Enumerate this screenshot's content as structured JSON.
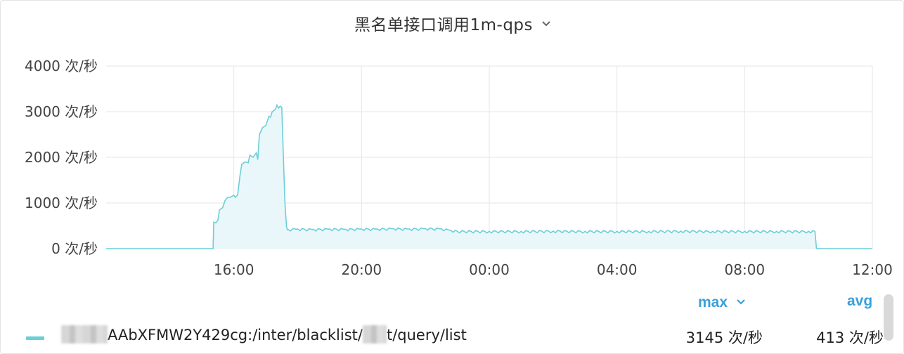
{
  "panel": {
    "title": "黑名单接口调用1m-qps",
    "title_caret": "chevron-down-icon"
  },
  "chart_data": {
    "type": "area",
    "title": "黑名单接口调用1m-qps",
    "xlabel": "",
    "ylabel": "",
    "y_unit": "次/秒",
    "y_ticks": [
      "0 次/秒",
      "1000 次/秒",
      "2000 次/秒",
      "3000 次/秒",
      "4000 次/秒"
    ],
    "ylim": [
      0,
      4000
    ],
    "x_ticks": [
      "16:00",
      "20:00",
      "00:00",
      "04:00",
      "08:00",
      "12:00"
    ],
    "xlim_hours": [
      12.0,
      36.0
    ],
    "grid": true,
    "line_color": "#6ccfd8",
    "fill_color": "#eaf7fa",
    "series": [
      {
        "name": "AAbXFMW2Y429cg:/inter/blacklist/t/query/list",
        "points": [
          [
            12.0,
            0
          ],
          [
            15.35,
            0
          ],
          [
            15.37,
            580
          ],
          [
            15.5,
            620
          ],
          [
            15.55,
            850
          ],
          [
            15.65,
            900
          ],
          [
            15.72,
            1050
          ],
          [
            15.8,
            1120
          ],
          [
            15.9,
            1130
          ],
          [
            16.0,
            1170
          ],
          [
            16.05,
            1120
          ],
          [
            16.12,
            1180
          ],
          [
            16.2,
            1650
          ],
          [
            16.25,
            1850
          ],
          [
            16.35,
            1900
          ],
          [
            16.45,
            1880
          ],
          [
            16.5,
            2050
          ],
          [
            16.6,
            2000
          ],
          [
            16.7,
            2100
          ],
          [
            16.75,
            1950
          ],
          [
            16.8,
            2500
          ],
          [
            16.9,
            2650
          ],
          [
            17.0,
            2700
          ],
          [
            17.05,
            2800
          ],
          [
            17.1,
            2900
          ],
          [
            17.15,
            2880
          ],
          [
            17.2,
            3000
          ],
          [
            17.3,
            3050
          ],
          [
            17.35,
            3145
          ],
          [
            17.4,
            3080
          ],
          [
            17.45,
            3120
          ],
          [
            17.5,
            3100
          ],
          [
            17.6,
            1000
          ],
          [
            17.65,
            480
          ],
          [
            17.7,
            420
          ],
          [
            18.0,
            430
          ],
          [
            18.5,
            420
          ],
          [
            19.0,
            430
          ],
          [
            19.5,
            425
          ],
          [
            20.0,
            430
          ],
          [
            20.5,
            430
          ],
          [
            21.0,
            440
          ],
          [
            21.5,
            430
          ],
          [
            22.0,
            440
          ],
          [
            22.5,
            435
          ],
          [
            22.8,
            400
          ],
          [
            23.0,
            380
          ],
          [
            24.0,
            380
          ],
          [
            25.0,
            380
          ],
          [
            26.0,
            385
          ],
          [
            27.0,
            380
          ],
          [
            28.0,
            380
          ],
          [
            29.0,
            380
          ],
          [
            30.0,
            385
          ],
          [
            31.0,
            380
          ],
          [
            32.0,
            380
          ],
          [
            33.0,
            380
          ],
          [
            34.0,
            380
          ],
          [
            34.2,
            380
          ],
          [
            34.25,
            0
          ],
          [
            36.0,
            0
          ]
        ],
        "max": "3145 次/秒",
        "avg": "413 次/秒"
      }
    ]
  },
  "legend": {
    "max_header": "max",
    "avg_header": "avg",
    "sort_icon": "chevron-down-icon",
    "series_name_visible": "AAbXFMW2Y429cg:/inter/blacklist/",
    "series_name_tail": "t/query/list",
    "max_value": "3145 次/秒",
    "avg_value": "413 次/秒"
  }
}
